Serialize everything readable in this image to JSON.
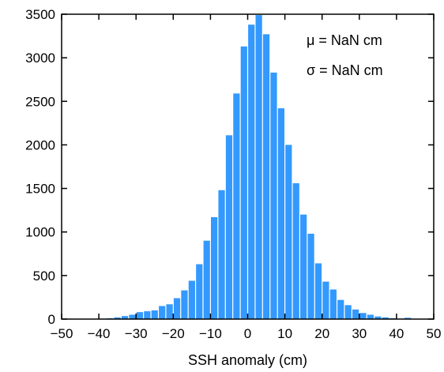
{
  "chart_data": {
    "type": "bar",
    "title": "",
    "xlabel": "SSH anomaly (cm)",
    "ylabel": "",
    "xlim": [
      -50,
      50
    ],
    "ylim": [
      0,
      3500
    ],
    "bin_width": 2,
    "x_ticks": [
      -50,
      -40,
      -30,
      -20,
      -10,
      0,
      10,
      20,
      30,
      40,
      50
    ],
    "x_tick_labels": [
      "−50",
      "−40",
      "−30",
      "−20",
      "−10",
      "0",
      "10",
      "20",
      "30",
      "40",
      "50"
    ],
    "y_ticks": [
      0,
      500,
      1000,
      1500,
      2000,
      2500,
      3000,
      3500
    ],
    "y_tick_labels": [
      "0",
      "500",
      "1000",
      "1500",
      "2000",
      "2500",
      "3000",
      "3500"
    ],
    "grid": false,
    "bar_color": "#3399ff",
    "annotations": [
      "μ = NaN cm",
      "σ = NaN cm"
    ],
    "x": [
      -49,
      -47,
      -45,
      -43,
      -41,
      -39,
      -37,
      -35,
      -33,
      -31,
      -29,
      -27,
      -25,
      -23,
      -21,
      -19,
      -17,
      -15,
      -13,
      -11,
      -9,
      -7,
      -5,
      -3,
      -1,
      1,
      3,
      5,
      7,
      9,
      11,
      13,
      15,
      17,
      19,
      21,
      23,
      25,
      27,
      29,
      31,
      33,
      35,
      37,
      39,
      41,
      43,
      45,
      47,
      49
    ],
    "values": [
      0,
      0,
      0,
      0,
      0,
      5,
      10,
      20,
      35,
      50,
      80,
      90,
      100,
      150,
      170,
      240,
      330,
      440,
      630,
      900,
      1170,
      1480,
      2110,
      2590,
      3130,
      3380,
      3490,
      3270,
      2830,
      2420,
      2000,
      1560,
      1200,
      980,
      640,
      430,
      340,
      220,
      160,
      110,
      70,
      50,
      30,
      20,
      10,
      5,
      15,
      0,
      0,
      0
    ]
  }
}
